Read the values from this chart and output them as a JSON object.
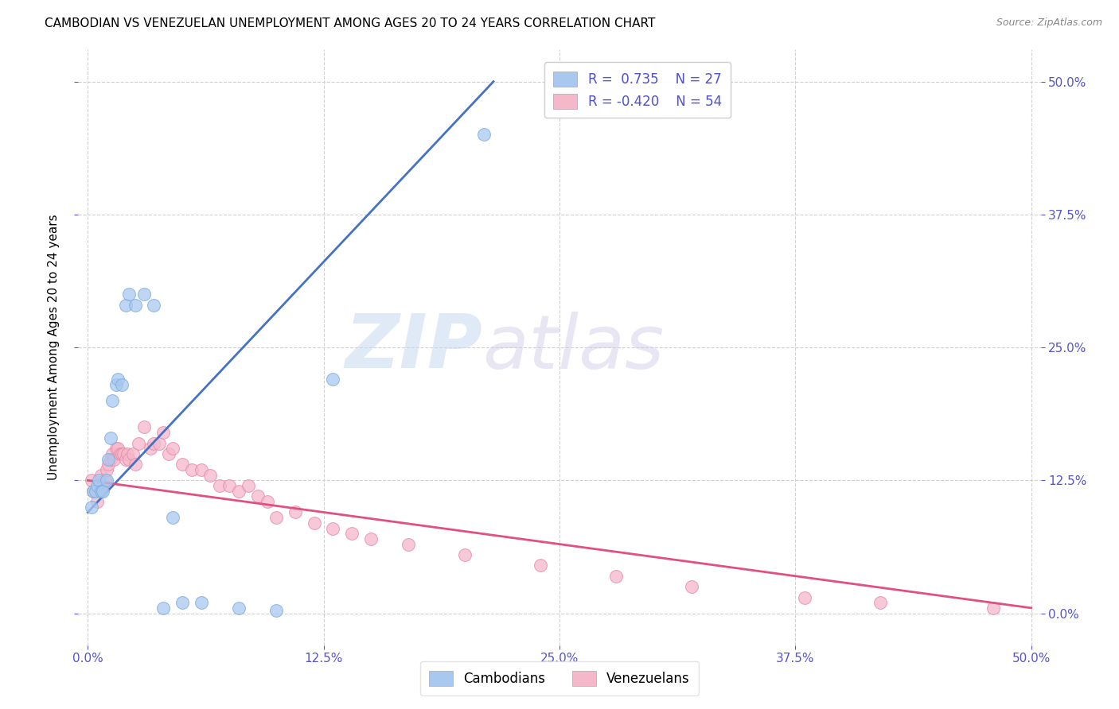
{
  "title": "CAMBODIAN VS VENEZUELAN UNEMPLOYMENT AMONG AGES 20 TO 24 YEARS CORRELATION CHART",
  "source": "Source: ZipAtlas.com",
  "ylabel": "Unemployment Among Ages 20 to 24 years",
  "xlim": [
    -0.005,
    0.505
  ],
  "ylim": [
    -0.03,
    0.53
  ],
  "xtick_vals": [
    0.0,
    0.125,
    0.25,
    0.375,
    0.5
  ],
  "ytick_vals": [
    0.0,
    0.125,
    0.25,
    0.375,
    0.5
  ],
  "cambodian_color": "#a8c8f0",
  "cambodian_edge_color": "#7aacdf",
  "venezuelan_color": "#f5b8cb",
  "venezuelan_edge_color": "#e88aa8",
  "cambodian_line_color": "#4472c4",
  "venezuelan_line_color": "#e05080",
  "legend_R_cambodian": "0.735",
  "legend_N_cambodian": "27",
  "legend_R_venezuelan": "-0.420",
  "legend_N_venezuelan": "54",
  "legend_label_cambodian": "Cambodians",
  "legend_label_venezuelan": "Venezuelans",
  "watermark_zip": "ZIP",
  "watermark_atlas": "atlas",
  "background_color": "#ffffff",
  "grid_color": "#d0d0d0",
  "tick_color": "#5555cc",
  "title_fontsize": 11,
  "source_fontsize": 9,
  "axis_label_fontsize": 11,
  "tick_fontsize": 11,
  "legend_fontsize": 12,
  "cambodian_x": [
    0.002,
    0.003,
    0.004,
    0.005,
    0.006,
    0.007,
    0.008,
    0.01,
    0.011,
    0.012,
    0.013,
    0.015,
    0.016,
    0.018,
    0.02,
    0.022,
    0.025,
    0.03,
    0.035,
    0.04,
    0.045,
    0.05,
    0.06,
    0.08,
    0.1,
    0.13,
    0.21
  ],
  "cambodian_y": [
    0.1,
    0.115,
    0.115,
    0.12,
    0.125,
    0.115,
    0.115,
    0.125,
    0.145,
    0.165,
    0.2,
    0.215,
    0.22,
    0.215,
    0.29,
    0.3,
    0.29,
    0.3,
    0.29,
    0.005,
    0.09,
    0.01,
    0.01,
    0.005,
    0.003,
    0.22,
    0.45
  ],
  "venezuelan_x": [
    0.002,
    0.003,
    0.005,
    0.006,
    0.007,
    0.008,
    0.009,
    0.01,
    0.011,
    0.012,
    0.013,
    0.014,
    0.015,
    0.016,
    0.017,
    0.018,
    0.019,
    0.02,
    0.021,
    0.022,
    0.024,
    0.025,
    0.027,
    0.03,
    0.033,
    0.035,
    0.038,
    0.04,
    0.043,
    0.045,
    0.05,
    0.055,
    0.06,
    0.065,
    0.07,
    0.075,
    0.08,
    0.085,
    0.09,
    0.095,
    0.1,
    0.11,
    0.12,
    0.13,
    0.14,
    0.15,
    0.17,
    0.2,
    0.24,
    0.28,
    0.32,
    0.38,
    0.42,
    0.48
  ],
  "venezuelan_y": [
    0.125,
    0.115,
    0.105,
    0.12,
    0.13,
    0.12,
    0.125,
    0.135,
    0.14,
    0.145,
    0.15,
    0.145,
    0.155,
    0.155,
    0.15,
    0.15,
    0.15,
    0.145,
    0.15,
    0.145,
    0.15,
    0.14,
    0.16,
    0.175,
    0.155,
    0.16,
    0.16,
    0.17,
    0.15,
    0.155,
    0.14,
    0.135,
    0.135,
    0.13,
    0.12,
    0.12,
    0.115,
    0.12,
    0.11,
    0.105,
    0.09,
    0.095,
    0.085,
    0.08,
    0.075,
    0.07,
    0.065,
    0.055,
    0.045,
    0.035,
    0.025,
    0.015,
    0.01,
    0.005
  ],
  "cam_line_x0": 0.0,
  "cam_line_y0": 0.095,
  "cam_line_x1": 0.215,
  "cam_line_y1": 0.5,
  "ven_line_x0": 0.0,
  "ven_line_y0": 0.125,
  "ven_line_x1": 0.5,
  "ven_line_y1": 0.005
}
